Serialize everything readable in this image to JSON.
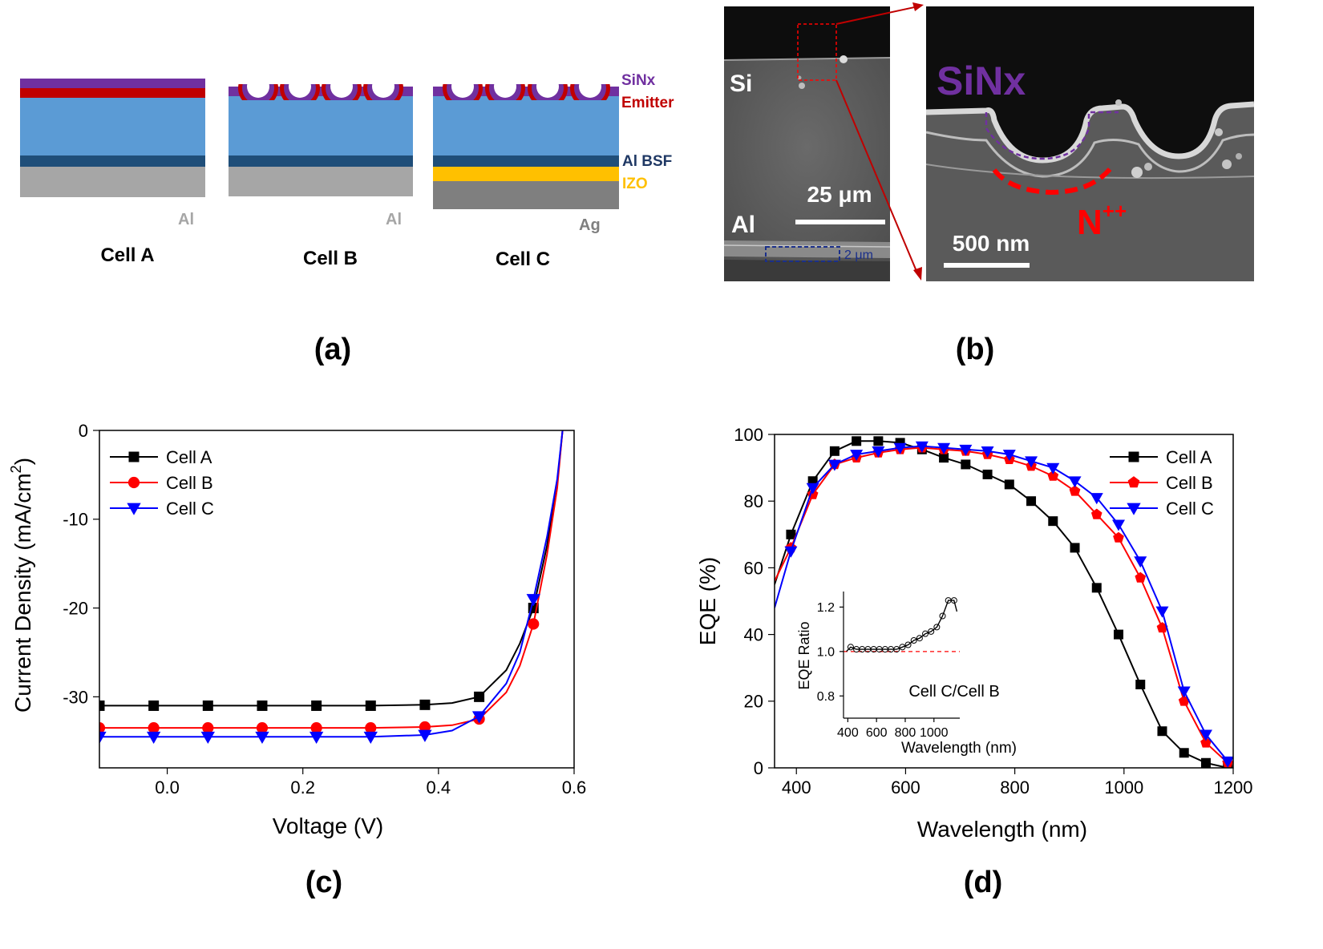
{
  "panel_a": {
    "label": "(a)",
    "layers": {
      "sinx": "SiNx",
      "emitter": "Emitter",
      "al_bsf": "Al BSF",
      "izo": "IZO"
    },
    "contacts": {
      "cell_a": "Al",
      "cell_b": "Al",
      "cell_c": "Ag"
    },
    "cells": {
      "cell_a": "Cell A",
      "cell_b": "Cell B",
      "cell_c": "Cell C"
    },
    "colors": {
      "sinx": "#7030a0",
      "emitter": "#c00000",
      "bulk": "#5b9bd5",
      "bsf": "#1f4e79",
      "izo": "#ffc000",
      "al": "#a6a6a6",
      "ag": "#7f7f7f"
    }
  },
  "panel_b": {
    "label": "(b)",
    "left": {
      "si": "Si",
      "al": "Al",
      "scale": "25 μm",
      "bsf_thickness": "2 μm"
    },
    "right": {
      "sinx": "SiNx",
      "n_label": "N",
      "n_sup": "++",
      "scale": "500 nm"
    }
  },
  "chart_data": [
    {
      "id": "c",
      "label": "(c)",
      "type": "line",
      "xlabel": "Voltage (V)",
      "ylabel": "Current Density (mA/cm",
      "ylabel_sup": "2",
      "ylabel_close": ")",
      "xlim": [
        -0.1,
        0.6
      ],
      "ylim": [
        -38,
        0
      ],
      "xticks": [
        0.0,
        0.2,
        0.4,
        0.6
      ],
      "xtick_labels": [
        "0.0",
        "0.2",
        "0.4",
        "0.6"
      ],
      "yticks": [
        0,
        -10,
        -20,
        -30
      ],
      "ytick_labels": [
        "0",
        "-10",
        "-20",
        "-30"
      ],
      "legend": "top-left",
      "series": [
        {
          "name": "Cell A",
          "color": "#000000",
          "marker": "square",
          "x": [
            -0.1,
            -0.02,
            0.06,
            0.14,
            0.22,
            0.3,
            0.38,
            0.42,
            0.46,
            0.5,
            0.52,
            0.54,
            0.56,
            0.575,
            0.583
          ],
          "y": [
            -31.0,
            -31.0,
            -31.0,
            -31.0,
            -31.0,
            -31.0,
            -30.9,
            -30.7,
            -30.0,
            -27.0,
            -24.0,
            -20.0,
            -13.0,
            -6.0,
            0.0
          ],
          "marker_x": [
            -0.1,
            -0.02,
            0.06,
            0.14,
            0.22,
            0.3,
            0.38,
            0.46,
            0.54
          ],
          "marker_y": [
            -31.0,
            -31.0,
            -31.0,
            -31.0,
            -31.0,
            -31.0,
            -30.9,
            -30.0,
            -20.0
          ]
        },
        {
          "name": "Cell B",
          "color": "#ff0000",
          "marker": "circle",
          "x": [
            -0.1,
            -0.02,
            0.06,
            0.14,
            0.22,
            0.3,
            0.38,
            0.42,
            0.46,
            0.5,
            0.52,
            0.54,
            0.56,
            0.575,
            0.583
          ],
          "y": [
            -33.5,
            -33.5,
            -33.5,
            -33.5,
            -33.5,
            -33.5,
            -33.4,
            -33.2,
            -32.5,
            -29.5,
            -26.5,
            -21.8,
            -14.0,
            -6.5,
            0.0
          ],
          "marker_x": [
            -0.1,
            -0.02,
            0.06,
            0.14,
            0.22,
            0.3,
            0.38,
            0.46,
            0.54
          ],
          "marker_y": [
            -33.5,
            -33.5,
            -33.5,
            -33.5,
            -33.5,
            -33.5,
            -33.4,
            -32.5,
            -21.8
          ]
        },
        {
          "name": "Cell C",
          "color": "#0000ff",
          "marker": "triangle-down",
          "x": [
            -0.1,
            -0.02,
            0.06,
            0.14,
            0.22,
            0.3,
            0.38,
            0.42,
            0.46,
            0.5,
            0.52,
            0.54,
            0.56,
            0.575,
            0.583
          ],
          "y": [
            -34.5,
            -34.5,
            -34.5,
            -34.5,
            -34.5,
            -34.5,
            -34.3,
            -33.8,
            -32.2,
            -28.5,
            -25.0,
            -19.0,
            -12.0,
            -5.5,
            0.0
          ],
          "marker_x": [
            -0.1,
            -0.02,
            0.06,
            0.14,
            0.22,
            0.3,
            0.38,
            0.46,
            0.54
          ],
          "marker_y": [
            -34.5,
            -34.5,
            -34.5,
            -34.5,
            -34.5,
            -34.5,
            -34.3,
            -32.2,
            -19.0
          ]
        }
      ]
    },
    {
      "id": "d",
      "label": "(d)",
      "type": "line",
      "xlabel": "Wavelength (nm)",
      "ylabel": "EQE (%)",
      "xlim": [
        360,
        1200
      ],
      "ylim": [
        0,
        100
      ],
      "xticks": [
        400,
        600,
        800,
        1000,
        1200
      ],
      "xtick_labels": [
        "400",
        "600",
        "800",
        "1000",
        "1200"
      ],
      "yticks": [
        0,
        20,
        40,
        60,
        80,
        100
      ],
      "ytick_labels": [
        "0",
        "20",
        "40",
        "60",
        "80",
        "100"
      ],
      "legend": "top-right",
      "series": [
        {
          "name": "Cell A",
          "color": "#000000",
          "marker": "square",
          "x": [
            360,
            390,
            430,
            470,
            510,
            550,
            590,
            630,
            670,
            710,
            750,
            790,
            830,
            870,
            910,
            950,
            990,
            1030,
            1070,
            1110,
            1150,
            1190
          ],
          "y": [
            55,
            70,
            86,
            95,
            98,
            98,
            97.5,
            95.5,
            93,
            91,
            88,
            85,
            80,
            74,
            66,
            54,
            40,
            25,
            11,
            4.5,
            1.5,
            0
          ],
          "marker_x": [
            390,
            430,
            470,
            510,
            550,
            590,
            630,
            670,
            710,
            750,
            790,
            830,
            870,
            910,
            950,
            990,
            1030,
            1070,
            1110,
            1150,
            1190
          ],
          "marker_y": [
            70,
            86,
            95,
            98,
            98,
            97.5,
            95.5,
            93,
            91,
            88,
            85,
            80,
            74,
            66,
            54,
            40,
            25,
            11,
            4.5,
            1.5,
            0
          ]
        },
        {
          "name": "Cell B",
          "color": "#ff0000",
          "marker": "pentagon",
          "x": [
            360,
            390,
            430,
            470,
            510,
            550,
            590,
            630,
            670,
            710,
            750,
            790,
            830,
            870,
            910,
            950,
            990,
            1030,
            1070,
            1110,
            1150,
            1190
          ],
          "y": [
            56,
            66,
            82,
            91,
            93,
            94.5,
            95.5,
            96,
            95.5,
            95,
            94,
            92.5,
            90.5,
            87.5,
            83,
            76,
            69,
            57,
            42,
            20,
            7.5,
            1.5
          ],
          "marker_x": [
            390,
            430,
            470,
            510,
            550,
            590,
            630,
            670,
            710,
            750,
            790,
            830,
            870,
            910,
            950,
            990,
            1030,
            1070,
            1110,
            1150,
            1190
          ],
          "marker_y": [
            66,
            82,
            91,
            93,
            94.5,
            95.5,
            96,
            95.5,
            95,
            94,
            92.5,
            90.5,
            87.5,
            83,
            76,
            69,
            57,
            42,
            20,
            7.5,
            1.5
          ]
        },
        {
          "name": "Cell C",
          "color": "#0000ff",
          "marker": "triangle-down",
          "x": [
            360,
            390,
            430,
            470,
            510,
            550,
            590,
            630,
            670,
            710,
            750,
            790,
            830,
            870,
            910,
            950,
            990,
            1030,
            1070,
            1110,
            1150,
            1190
          ],
          "y": [
            48,
            65,
            84,
            91,
            94,
            95,
            96,
            96.5,
            96,
            95.5,
            95,
            94,
            92,
            90,
            86,
            81,
            73,
            62,
            47,
            23,
            10,
            2
          ],
          "marker_x": [
            390,
            430,
            470,
            510,
            550,
            590,
            630,
            670,
            710,
            750,
            790,
            830,
            870,
            910,
            950,
            990,
            1030,
            1070,
            1110,
            1150,
            1190
          ],
          "marker_y": [
            65,
            84,
            91,
            94,
            95,
            96,
            96.5,
            96,
            95.5,
            95,
            94,
            92,
            90,
            86,
            81,
            73,
            62,
            47,
            23,
            10,
            2
          ]
        }
      ]
    },
    {
      "id": "d_inset",
      "type": "line",
      "annotation": "Cell C/Cell B",
      "xlabel": "Wavelength (nm)",
      "ylabel": "EQE Ratio",
      "xlim": [
        370,
        1180
      ],
      "ylim": [
        0.7,
        1.27
      ],
      "xticks": [
        400,
        600,
        800,
        1000
      ],
      "xtick_labels": [
        "400",
        "600",
        "800",
        "1000"
      ],
      "yticks": [
        0.8,
        1.0,
        1.2
      ],
      "ytick_labels": [
        "0.8",
        "1.0",
        "1.2"
      ],
      "reference_line": 1.0,
      "series": [
        {
          "color": "#000000",
          "reference_color": "#ff0000",
          "x": [
            390,
            420,
            460,
            500,
            540,
            580,
            620,
            660,
            700,
            740,
            780,
            820,
            860,
            900,
            940,
            980,
            1020,
            1060,
            1100,
            1140,
            1160
          ],
          "y": [
            1.0,
            1.02,
            1.01,
            1.01,
            1.01,
            1.01,
            1.01,
            1.01,
            1.01,
            1.01,
            1.02,
            1.03,
            1.05,
            1.06,
            1.08,
            1.09,
            1.11,
            1.16,
            1.23,
            1.23,
            1.18
          ],
          "marker_x": [
            420,
            460,
            500,
            540,
            580,
            620,
            660,
            700,
            740,
            780,
            820,
            860,
            900,
            940,
            980,
            1020,
            1060,
            1100,
            1140
          ],
          "marker_y": [
            1.02,
            1.01,
            1.01,
            1.01,
            1.01,
            1.01,
            1.01,
            1.01,
            1.01,
            1.02,
            1.03,
            1.05,
            1.06,
            1.08,
            1.09,
            1.11,
            1.16,
            1.23,
            1.23
          ]
        }
      ]
    }
  ]
}
